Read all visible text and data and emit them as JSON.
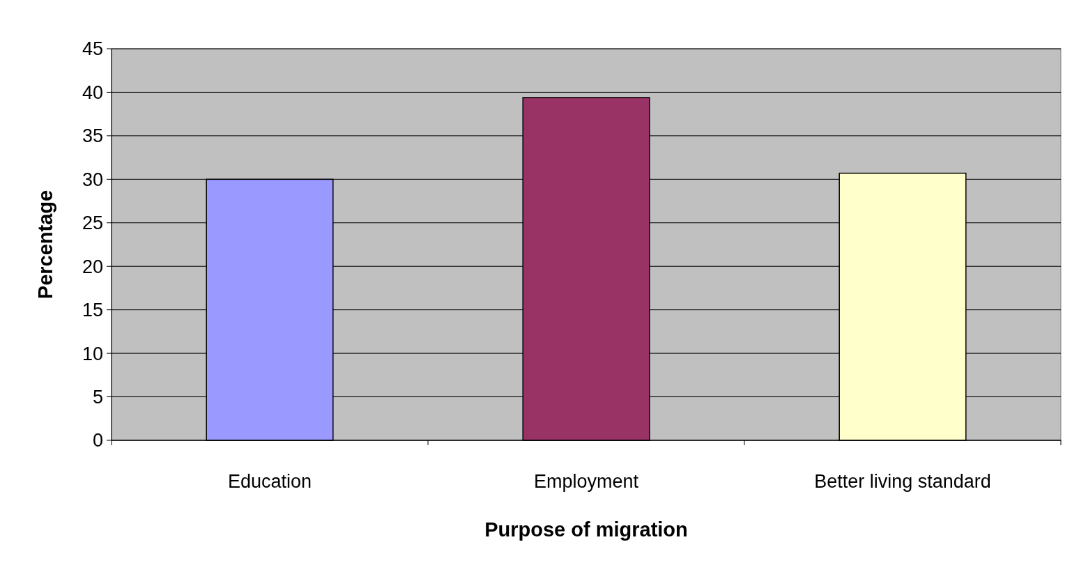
{
  "chart_data": {
    "type": "bar",
    "xlabel": "Purpose of migration",
    "ylabel": "Percentage",
    "categories": [
      "Education",
      "Employment",
      "Better living standard"
    ],
    "values": [
      30,
      39.4,
      30.7
    ],
    "colors": [
      "#9999ff",
      "#993366",
      "#ffffcc"
    ],
    "ylim": [
      0,
      45
    ],
    "yticks": [
      0,
      5,
      10,
      15,
      20,
      25,
      30,
      35,
      40,
      45
    ],
    "grid": "y"
  }
}
